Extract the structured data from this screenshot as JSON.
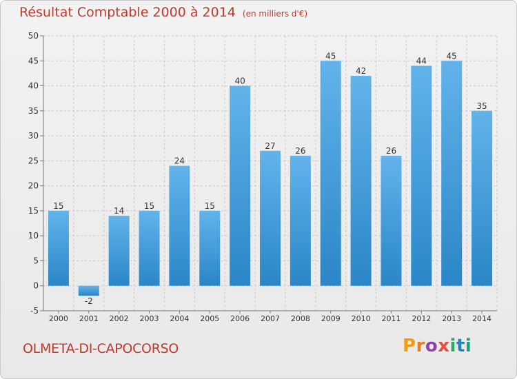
{
  "header": {
    "title": "Résultat Comptable 2000 à 2014",
    "subtitle": "(en milliers d'€)"
  },
  "footer": {
    "place_name": "OLMETA-DI-CAPOCORSO",
    "logo_letters": [
      {
        "char": "P",
        "color": "#f39c12"
      },
      {
        "char": "r",
        "color": "#e67e22"
      },
      {
        "char": "o",
        "color": "#8e44ad"
      },
      {
        "char": "x",
        "color": "#e74c3c"
      },
      {
        "char": "i",
        "color": "#27ae60"
      },
      {
        "char": "t",
        "color": "#2980b9"
      },
      {
        "char": "i",
        "color": "#16a085"
      }
    ]
  },
  "colors": {
    "bar_light": "#62b3ea",
    "bar_dark": "#2a86c7",
    "title_color": "#c0392b",
    "grid": "#c8c8c8"
  },
  "chart_data": {
    "type": "bar",
    "title": "Résultat Comptable 2000 à 2014",
    "subtitle": "(en milliers d'€)",
    "xlabel": "",
    "ylabel": "",
    "categories": [
      "2000",
      "2001",
      "2002",
      "2003",
      "2004",
      "2005",
      "2006",
      "2007",
      "2008",
      "2009",
      "2010",
      "2011",
      "2012",
      "2013",
      "2014"
    ],
    "values": [
      15,
      -2,
      14,
      15,
      24,
      15,
      40,
      27,
      26,
      45,
      42,
      26,
      44,
      45,
      35
    ],
    "data_labels": [
      "15",
      "-2",
      "14",
      "15",
      "24",
      "15",
      "40",
      "27",
      "26",
      "45",
      "42",
      "26",
      "44",
      "45",
      "35"
    ],
    "ylim": [
      -5,
      50
    ],
    "yticks": [
      -5,
      0,
      5,
      10,
      15,
      20,
      25,
      30,
      35,
      40,
      45,
      50
    ],
    "grid": true
  }
}
